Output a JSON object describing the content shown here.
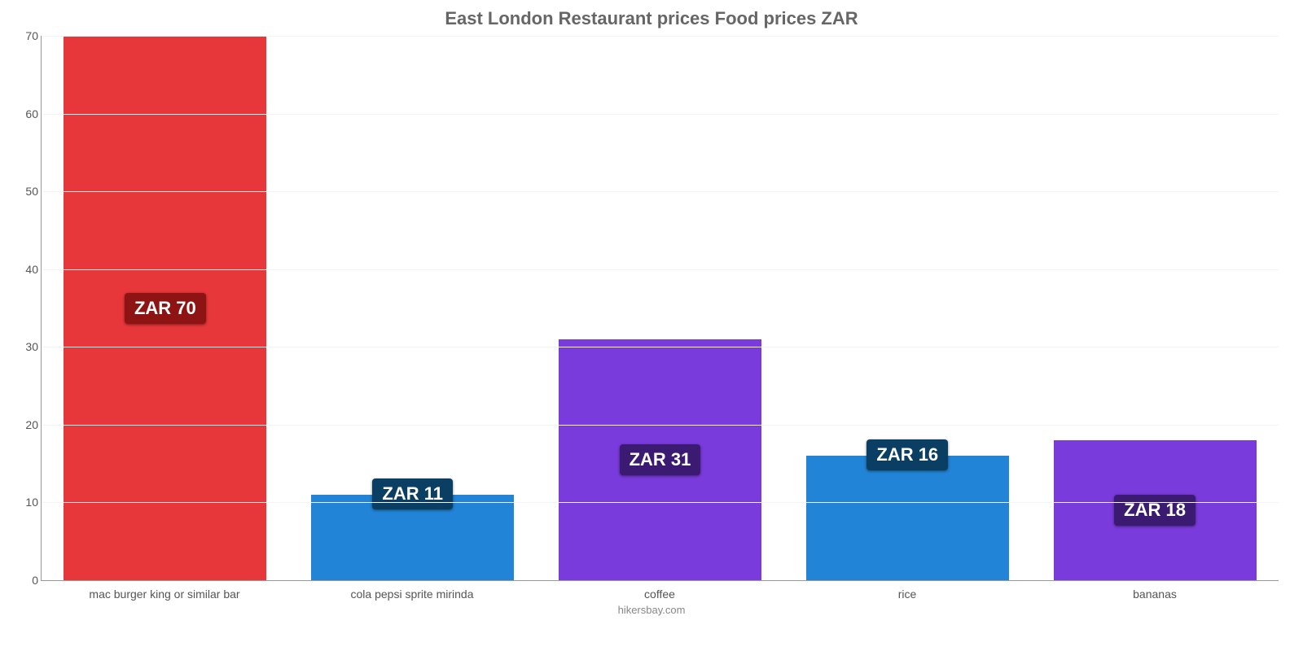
{
  "chart": {
    "type": "bar",
    "title": "East London Restaurant prices Food prices ZAR",
    "title_fontsize": 22,
    "title_color": "#666666",
    "background_color": "#ffffff",
    "grid_color": "#f4f4f4",
    "axis_color": "#999999",
    "tick_label_color": "#555555",
    "tick_fontsize": 14,
    "ylim": [
      0,
      70
    ],
    "yticks": [
      0,
      10,
      20,
      30,
      40,
      50,
      60,
      70
    ],
    "bar_width": 0.82,
    "value_label_fontsize": 22,
    "categories": [
      "mac burger king or similar bar",
      "cola pepsi sprite mirinda",
      "coffee",
      "rice",
      "bananas"
    ],
    "values": [
      70,
      11,
      31,
      16,
      18
    ],
    "value_labels": [
      "ZAR 70",
      "ZAR 11",
      "ZAR 31",
      "ZAR 16",
      "ZAR 18"
    ],
    "bar_colors": [
      "#e8373b",
      "#2284d6",
      "#7a3bdc",
      "#2284d6",
      "#7a3bdc"
    ],
    "badge_colors": [
      "#8e1414",
      "#0b3e63",
      "#3b1a72",
      "#0b3e63",
      "#3b1a72"
    ],
    "attribution": "hikersbay.com"
  }
}
